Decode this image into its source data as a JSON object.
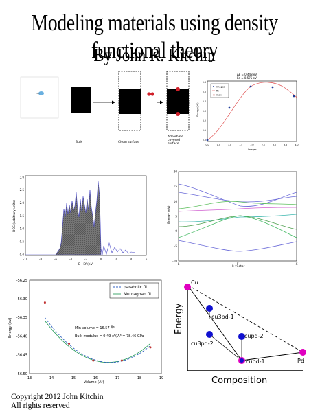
{
  "cover": {
    "title": "Modeling materials using density functional theory",
    "author": "By John R. Kitchin",
    "copyright_line1": "Copyright 2012 John Kitchin",
    "copyright_line2": "All rights reserved"
  },
  "panel_surfaces": {
    "labels": [
      "Bulk",
      "Clean surface",
      "Adsorbate covered surface"
    ],
    "adsorbate_color": "#d0202a"
  },
  "panel_neb": {
    "header": [
      "ΔE = 0.448 eV",
      "Ea = 0.575 eV"
    ],
    "legend": [
      "images",
      "fit",
      "max"
    ],
    "xlabel": "Images",
    "ylabel": "Energy (eV)",
    "xticks": [
      "0.0",
      "0.5",
      "1.0",
      "1.5",
      "2.0",
      "2.5",
      "3.0",
      "3.5",
      "4.0"
    ],
    "yticks": [
      "0.6",
      "0.5",
      "0.4",
      "0.3",
      "0.2",
      "0.1",
      "0.0"
    ]
  },
  "panel_dos": {
    "xlabel": "E - Ef (eV)",
    "ylabel": "DOS (arbitrary units)",
    "xticks": [
      "-10",
      "-8",
      "-6",
      "-4",
      "-2",
      "0",
      "2",
      "4",
      "6"
    ],
    "yticks": [
      "0.0",
      "0.5",
      "1.0",
      "1.5",
      "2.0",
      "2.5",
      "3.0"
    ]
  },
  "panel_bands": {
    "xlabel": "k-vector",
    "ylabel": "Energy (eV)",
    "xticks": [
      "L",
      "Γ",
      "X"
    ],
    "yticks": [
      "20",
      "15",
      "10",
      "5",
      "0",
      "-5",
      "-10"
    ]
  },
  "chart_data": {
    "type": "scatter",
    "xlabel": "Volume (Å³)",
    "ylabel": "Energy (eV)",
    "xlim": [
      13,
      19
    ],
    "ylim": [
      -56.5,
      -56.25
    ],
    "xticks": [
      "13",
      "14",
      "15",
      "16",
      "17",
      "18",
      "19"
    ],
    "yticks": [
      "-56.25",
      "-56.30",
      "-56.35",
      "-56.40",
      "-56.45",
      "-56.50"
    ],
    "x": [
      13.7,
      14.8,
      15.9,
      17.2,
      18.5
    ],
    "y": [
      -56.31,
      -56.42,
      -56.465,
      -56.465,
      -56.43
    ],
    "legend": [
      "parabolic fit",
      "Murnaghan fit"
    ],
    "annotation_1": "Min volume = 16.57 Å³",
    "annotation_2": "Bulk modulus = 0.49 eV/Å³ = 78.46 GPa"
  },
  "panel_hull": {
    "xlabel": "Composition",
    "ylabel": "Energy",
    "points": [
      "Cu",
      "cu3pd-1",
      "cu3pd-2",
      "cupd-2",
      "cupd-1",
      "Pd"
    ]
  }
}
